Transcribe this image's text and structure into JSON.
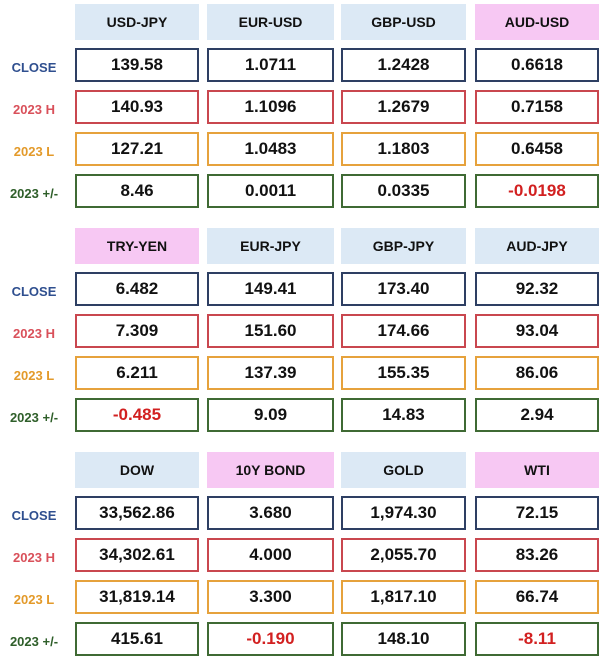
{
  "row_labels": {
    "close": "CLOSE",
    "high": "2023 H",
    "low": "2023 L",
    "change": "2023 +/-"
  },
  "colors": {
    "close": "#2e3f63",
    "high": "#c9474f",
    "low": "#e6a23c",
    "change": "#3f6a34",
    "header_blue": "#dce9f5",
    "header_pink": "#f7c8f3",
    "negative": "#d22020"
  },
  "blocks": [
    {
      "instruments": [
        {
          "name": "USD-JPY",
          "close": "139.58",
          "high": "140.93",
          "low": "127.21",
          "change": "8.46"
        },
        {
          "name": "EUR-USD",
          "close": "1.0711",
          "high": "1.1096",
          "low": "1.0483",
          "change": "0.0011"
        },
        {
          "name": "GBP-USD",
          "close": "1.2428",
          "high": "1.2679",
          "low": "1.1803",
          "change": "0.0335"
        },
        {
          "name": "AUD-USD",
          "close": "0.6618",
          "high": "0.7158",
          "low": "0.6458",
          "change": "-0.0198"
        }
      ]
    },
    {
      "instruments": [
        {
          "name": "TRY-YEN",
          "close": "6.482",
          "high": "7.309",
          "low": "6.211",
          "change": "-0.485"
        },
        {
          "name": "EUR-JPY",
          "close": "149.41",
          "high": "151.60",
          "low": "137.39",
          "change": "9.09"
        },
        {
          "name": "GBP-JPY",
          "close": "173.40",
          "high": "174.66",
          "low": "155.35",
          "change": "14.83"
        },
        {
          "name": "AUD-JPY",
          "close": "92.32",
          "high": "93.04",
          "low": "86.06",
          "change": "2.94"
        }
      ]
    },
    {
      "instruments": [
        {
          "name": "DOW",
          "close": "33,562.86",
          "high": "34,302.61",
          "low": "31,819.14",
          "change": "415.61"
        },
        {
          "name": "10Y BOND",
          "close": "3.680",
          "high": "4.000",
          "low": "3.300",
          "change": "-0.190"
        },
        {
          "name": "GOLD",
          "close": "1,974.30",
          "high": "2,055.70",
          "low": "1,817.10",
          "change": "148.10"
        },
        {
          "name": "WTI",
          "close": "72.15",
          "high": "83.26",
          "low": "66.74",
          "change": "-8.11"
        }
      ]
    }
  ]
}
